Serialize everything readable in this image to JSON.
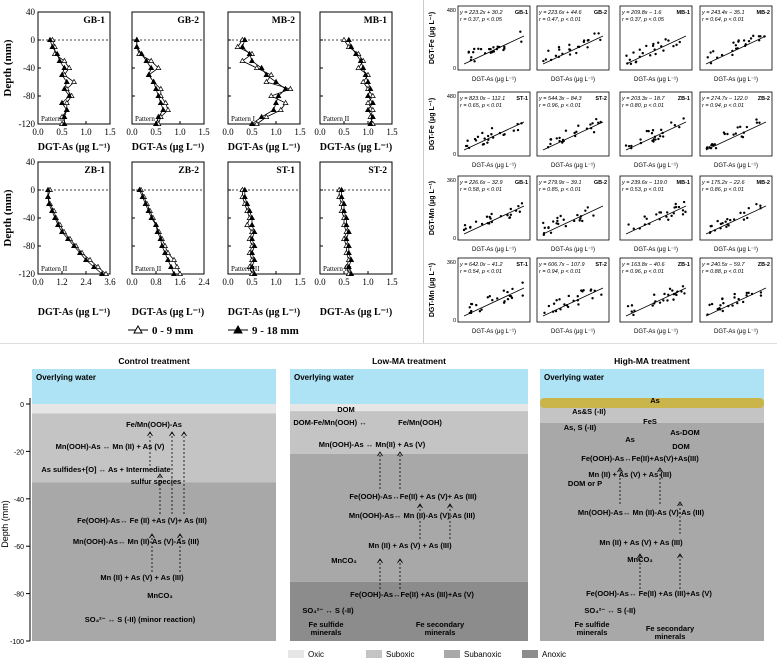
{
  "depth_profiles": {
    "ylabel": "Depth (mm)",
    "xlabel": "DGT-As (μg L⁻¹)",
    "legend": [
      {
        "label": "0 - 9 mm",
        "marker": "open-triangle"
      },
      {
        "label": "9 - 18 mm",
        "marker": "filled-triangle"
      }
    ],
    "yticks_top": [
      "40",
      "0",
      "-40",
      "-80",
      "-120"
    ],
    "yticks_bottom": [
      "40",
      "0",
      "-40",
      "-80",
      "-120"
    ],
    "panels": [
      {
        "site": "GB-1",
        "pattern": "Pattern I",
        "xticks": [
          "0.0",
          "0.5",
          "1.0",
          "1.5"
        ],
        "xmax": 1.5,
        "open": [
          [
            0.3,
            0
          ],
          [
            0.35,
            -10
          ],
          [
            0.35,
            -20
          ],
          [
            0.55,
            -30
          ],
          [
            0.65,
            -40
          ],
          [
            0.55,
            -50
          ],
          [
            0.75,
            -60
          ],
          [
            0.6,
            -70
          ],
          [
            0.7,
            -80
          ],
          [
            0.6,
            -90
          ],
          [
            0.6,
            -100
          ],
          [
            0.5,
            -110
          ],
          [
            0.5,
            -120
          ]
        ],
        "filled": [
          [
            0.25,
            0
          ],
          [
            0.3,
            -10
          ],
          [
            0.4,
            -20
          ],
          [
            0.45,
            -30
          ],
          [
            0.55,
            -40
          ],
          [
            0.5,
            -50
          ],
          [
            0.6,
            -60
          ],
          [
            0.55,
            -70
          ],
          [
            0.65,
            -80
          ],
          [
            0.5,
            -90
          ],
          [
            0.6,
            -100
          ],
          [
            0.55,
            -110
          ],
          [
            0.55,
            -120
          ]
        ]
      },
      {
        "site": "GB-2",
        "pattern": "Pattern I",
        "xticks": [
          "0.0",
          "0.5",
          "1.0",
          "1.5"
        ],
        "xmax": 1.5,
        "open": [
          [
            0.1,
            0
          ],
          [
            0.1,
            -10
          ],
          [
            0.15,
            -20
          ],
          [
            0.4,
            -30
          ],
          [
            0.55,
            -40
          ],
          [
            0.35,
            -50
          ],
          [
            0.45,
            -60
          ],
          [
            0.6,
            -70
          ],
          [
            0.6,
            -80
          ],
          [
            0.7,
            -90
          ],
          [
            0.75,
            -100
          ],
          [
            0.6,
            -110
          ],
          [
            0.55,
            -120
          ]
        ],
        "filled": [
          [
            0.1,
            0
          ],
          [
            0.1,
            -10
          ],
          [
            0.2,
            -20
          ],
          [
            0.3,
            -30
          ],
          [
            0.4,
            -40
          ],
          [
            0.35,
            -50
          ],
          [
            0.45,
            -60
          ],
          [
            0.5,
            -70
          ],
          [
            0.55,
            -80
          ],
          [
            0.6,
            -90
          ],
          [
            0.65,
            -100
          ],
          [
            0.55,
            -110
          ],
          [
            0.5,
            -120
          ]
        ]
      },
      {
        "site": "MB-2",
        "pattern": "Pattern I",
        "xticks": [
          "0.0",
          "0.5",
          "1.0",
          "1.5"
        ],
        "xmax": 1.5,
        "open": [
          [
            0.3,
            0
          ],
          [
            0.2,
            -10
          ],
          [
            0.5,
            -20
          ],
          [
            0.3,
            -30
          ],
          [
            0.6,
            -40
          ],
          [
            0.9,
            -50
          ],
          [
            0.8,
            -60
          ],
          [
            1.3,
            -70
          ],
          [
            0.9,
            -80
          ],
          [
            1.2,
            -90
          ],
          [
            1.1,
            -100
          ],
          [
            0.8,
            -110
          ],
          [
            0.6,
            -120
          ]
        ],
        "filled": [
          [
            0.35,
            0
          ],
          [
            0.3,
            -10
          ],
          [
            0.45,
            -20
          ],
          [
            0.5,
            -30
          ],
          [
            0.7,
            -40
          ],
          [
            0.8,
            -50
          ],
          [
            1.0,
            -60
          ],
          [
            1.2,
            -70
          ],
          [
            1.05,
            -80
          ],
          [
            1.0,
            -90
          ],
          [
            0.95,
            -100
          ],
          [
            0.7,
            -110
          ],
          [
            0.5,
            -120
          ]
        ]
      },
      {
        "site": "MB-1",
        "pattern": "Pattern II",
        "xticks": [
          "0.0",
          "0.5",
          "1.0",
          "1.5"
        ],
        "xmax": 1.5,
        "open": [
          [
            0.5,
            0
          ],
          [
            0.6,
            -10
          ],
          [
            0.8,
            -20
          ],
          [
            0.9,
            -30
          ],
          [
            0.8,
            -40
          ],
          [
            1.0,
            -50
          ],
          [
            0.9,
            -60
          ],
          [
            1.0,
            -70
          ],
          [
            1.1,
            -80
          ],
          [
            1.0,
            -90
          ],
          [
            1.1,
            -100
          ],
          [
            1.05,
            -110
          ],
          [
            1.1,
            -120
          ]
        ],
        "filled": [
          [
            0.6,
            0
          ],
          [
            0.65,
            -10
          ],
          [
            0.75,
            -20
          ],
          [
            0.85,
            -30
          ],
          [
            0.9,
            -40
          ],
          [
            0.95,
            -50
          ],
          [
            1.0,
            -60
          ],
          [
            1.05,
            -70
          ],
          [
            1.0,
            -80
          ],
          [
            1.1,
            -90
          ],
          [
            1.0,
            -100
          ],
          [
            1.1,
            -110
          ],
          [
            1.05,
            -120
          ]
        ]
      },
      {
        "site": "ZB-1",
        "pattern": "Pattern II",
        "xticks": [
          "0.0",
          "1.2",
          "2.4",
          "3.6"
        ],
        "xmax": 3.6,
        "open": [
          [
            0.6,
            0
          ],
          [
            0.5,
            -10
          ],
          [
            0.6,
            -20
          ],
          [
            0.8,
            -30
          ],
          [
            0.9,
            -40
          ],
          [
            1.1,
            -50
          ],
          [
            1.3,
            -60
          ],
          [
            1.6,
            -70
          ],
          [
            1.9,
            -80
          ],
          [
            2.2,
            -90
          ],
          [
            2.6,
            -100
          ],
          [
            3.0,
            -110
          ],
          [
            3.4,
            -120
          ]
        ],
        "filled": [
          [
            0.5,
            0
          ],
          [
            0.5,
            -10
          ],
          [
            0.55,
            -20
          ],
          [
            0.7,
            -30
          ],
          [
            0.85,
            -40
          ],
          [
            1.0,
            -50
          ],
          [
            1.2,
            -60
          ],
          [
            1.5,
            -70
          ],
          [
            1.8,
            -80
          ],
          [
            2.1,
            -90
          ],
          [
            2.4,
            -100
          ],
          [
            2.8,
            -110
          ],
          [
            3.2,
            -120
          ]
        ]
      },
      {
        "site": "ZB-2",
        "pattern": "Pattern II",
        "xticks": [
          "0.0",
          "0.8",
          "1.6",
          "2.4"
        ],
        "xmax": 2.4,
        "open": [
          [
            0.3,
            0
          ],
          [
            0.4,
            -10
          ],
          [
            0.5,
            -20
          ],
          [
            0.6,
            -30
          ],
          [
            0.7,
            -40
          ],
          [
            0.8,
            -50
          ],
          [
            0.9,
            -60
          ],
          [
            1.0,
            -70
          ],
          [
            1.1,
            -80
          ],
          [
            1.2,
            -90
          ],
          [
            1.4,
            -100
          ],
          [
            1.5,
            -110
          ],
          [
            1.6,
            -120
          ]
        ],
        "filled": [
          [
            0.25,
            0
          ],
          [
            0.35,
            -10
          ],
          [
            0.45,
            -20
          ],
          [
            0.55,
            -30
          ],
          [
            0.65,
            -40
          ],
          [
            0.8,
            -50
          ],
          [
            0.85,
            -60
          ],
          [
            0.95,
            -70
          ],
          [
            1.0,
            -80
          ],
          [
            1.1,
            -90
          ],
          [
            1.2,
            -100
          ],
          [
            1.3,
            -110
          ],
          [
            1.4,
            -120
          ]
        ]
      },
      {
        "site": "ST-1",
        "pattern": "Pattern III",
        "xticks": [
          "0.0",
          "0.5",
          "1.0",
          "1.5"
        ],
        "xmax": 1.5,
        "open": [
          [
            0.3,
            0
          ],
          [
            0.3,
            -10
          ],
          [
            0.35,
            -20
          ],
          [
            0.4,
            -30
          ],
          [
            0.45,
            -40
          ],
          [
            0.4,
            -50
          ],
          [
            0.5,
            -60
          ],
          [
            0.45,
            -70
          ],
          [
            0.5,
            -80
          ],
          [
            0.45,
            -90
          ],
          [
            0.5,
            -100
          ],
          [
            0.45,
            -110
          ],
          [
            0.5,
            -120
          ]
        ],
        "filled": [
          [
            0.35,
            0
          ],
          [
            0.35,
            -10
          ],
          [
            0.4,
            -20
          ],
          [
            0.45,
            -30
          ],
          [
            0.5,
            -40
          ],
          [
            0.5,
            -50
          ],
          [
            0.55,
            -60
          ],
          [
            0.5,
            -70
          ],
          [
            0.55,
            -80
          ],
          [
            0.5,
            -90
          ],
          [
            0.55,
            -100
          ],
          [
            0.5,
            -110
          ],
          [
            0.55,
            -120
          ]
        ]
      },
      {
        "site": "ST-2",
        "pattern": "Pattern III",
        "xticks": [
          "0.0",
          "0.5",
          "1.0",
          "1.5"
        ],
        "xmax": 1.5,
        "open": [
          [
            0.4,
            0
          ],
          [
            0.4,
            -10
          ],
          [
            0.45,
            -20
          ],
          [
            0.45,
            -30
          ],
          [
            0.5,
            -40
          ],
          [
            0.5,
            -50
          ],
          [
            0.55,
            -60
          ],
          [
            0.5,
            -70
          ],
          [
            0.55,
            -80
          ],
          [
            0.55,
            -90
          ],
          [
            0.6,
            -100
          ],
          [
            0.55,
            -110
          ],
          [
            0.6,
            -120
          ]
        ],
        "filled": [
          [
            0.45,
            0
          ],
          [
            0.45,
            -10
          ],
          [
            0.5,
            -20
          ],
          [
            0.5,
            -30
          ],
          [
            0.55,
            -40
          ],
          [
            0.55,
            -50
          ],
          [
            0.6,
            -60
          ],
          [
            0.55,
            -70
          ],
          [
            0.6,
            -80
          ],
          [
            0.6,
            -90
          ],
          [
            0.65,
            -100
          ],
          [
            0.6,
            -110
          ],
          [
            0.65,
            -120
          ]
        ]
      }
    ]
  },
  "scatter": {
    "row_labels": [
      "DGT-Fe (μg L⁻¹)",
      "DGT-Fe (μg L⁻¹)",
      "DGT-Mn (μg L⁻¹)",
      "DGT-Mn (μg L⁻¹)"
    ],
    "xlabel": "DGT-As (μg L⁻¹)",
    "panels": [
      {
        "site": "GB-1",
        "eq": "y = 223.2x + 30.2",
        "r": "r = 0.37, p < 0.05",
        "ymax": 480
      },
      {
        "site": "GB-2",
        "eq": "y = 223.6x + 44.6",
        "r": "r = 0.47, p < 0.01",
        "ymax": 480
      },
      {
        "site": "MB-1",
        "eq": "y = 209.8x − 1.6",
        "r": "r = 0.37, p < 0.05",
        "ymax": 480
      },
      {
        "site": "MB-2",
        "eq": "y = 243.4x − 35.1",
        "r": "r = 0.64, p < 0.01",
        "ymax": 480
      },
      {
        "site": "ST-1",
        "eq": "y = 823.0x − 112.1",
        "r": "r = 0.65, p < 0.01",
        "ymax": 480
      },
      {
        "site": "ST-2",
        "eq": "y = 544.3x − 84.3",
        "r": "r = 0.96, p < 0.01",
        "ymax": 480
      },
      {
        "site": "ZB-1",
        "eq": "y = 203.3x − 18.7",
        "r": "r = 0.80, p < 0.01",
        "ymax": 480
      },
      {
        "site": "ZB-2",
        "eq": "y = 274.7x − 122.0",
        "r": "r = 0.94, p < 0.01",
        "ymax": 480
      },
      {
        "site": "GB-1",
        "eq": "y = 226.6x − 32.9",
        "r": "r = 0.58, p < 0.01",
        "ymax": 360
      },
      {
        "site": "GB-2",
        "eq": "y = 279.9x − 39.1",
        "r": "r = 0.85, p < 0.01",
        "ymax": 360
      },
      {
        "site": "MB-1",
        "eq": "y = 239.6x − 119.0",
        "r": "r = 0.53, p < 0.01",
        "ymax": 360
      },
      {
        "site": "MB-2",
        "eq": "y = 175.2x − 22.6",
        "r": "r = 0.86, p < 0.01",
        "ymax": 360
      },
      {
        "site": "ST-1",
        "eq": "y = 642.0x − 41.2",
        "r": "r = 0.54, p < 0.01",
        "ymax": 360
      },
      {
        "site": "ST-2",
        "eq": "y = 606.7x − 107.9",
        "r": "r = 0.94, p < 0.01",
        "ymax": 360
      },
      {
        "site": "ZB-1",
        "eq": "y = 163.8x − 40.6",
        "r": "r = 0.96, p < 0.01",
        "ymax": 360
      },
      {
        "site": "ZB-2",
        "eq": "y = 240.5x − 59.7",
        "r": "r = 0.88, p < 0.01",
        "ymax": 360
      }
    ]
  },
  "schematic": {
    "depth_axis_label": "Depth (mm)",
    "depth_ticks": [
      "0",
      "-20",
      "-40",
      "-60",
      "-80",
      "-100"
    ],
    "overlying_water": "Overlying water",
    "legend": [
      {
        "label": "Oxic",
        "color": "#e6e6e6"
      },
      {
        "label": "Suboxic",
        "color": "#c4c4c4"
      },
      {
        "label": "Subanoxic",
        "color": "#a8a8a8"
      },
      {
        "label": "Anoxic",
        "color": "#8c8c8c"
      }
    ],
    "control": {
      "title": "Control treatment",
      "lines": [
        "Fe/Mn(OOH)-As",
        "Mn(OOH)-As ↔ Mn (II) + As (V)",
        "As sulfides+[O] ↔ As + Intermediate",
        "sulfur species",
        "Fe(OOH)-As↔ Fe (II) +As (V)+ As (III)",
        "Mn(OOH)-As↔ Mn (II)-As (V)-As (III)",
        "Mn (II) + As (V) + As (III)",
        "MnCO₃",
        "SO₄²⁻ ↔ S (-II) (minor reaction)"
      ]
    },
    "low_ma": {
      "title": "Low-MA treatment",
      "lines": [
        "DOM",
        "DOM-Fe/Mn(OOH) ↔",
        "Fe/Mn(OOH)",
        "Mn(OOH)-As ↔ Mn(II) + As (V)",
        "Fe(OOH)-As↔Fe(II) + As (V)+ As (III)",
        "Mn(OOH)-As↔ Mn (II)-As (V)-As (III)",
        "Mn (II) + As (V) + As (III)",
        "MnCO₃",
        "Fe(OOH)-As↔Fe(II) +As (III)+As (V)",
        "SO₄²⁻ ↔ S (-II)",
        "Fe sulfide",
        "minerals",
        "Fe secondary",
        "minerals"
      ]
    },
    "high_ma": {
      "title": "High-MA treatment",
      "lines": [
        "As",
        "As&S (-II)",
        "As, S (-II)",
        "FeS",
        "As",
        "As-DOM",
        "DOM",
        "Fe(OOH)-As↔Fe(II)+As(V)+As(III)",
        "DOM or P",
        "Mn (II) + As (V) + As (III)",
        "Mn(OOH)-As↔ Mn (II)-As (V)-As (III)",
        "Mn (II) + As (V) + As (III)",
        "MnCO₃",
        "Fe(OOH)-As↔ Fe(II) +As (III)+As (V)",
        "SO₄²⁻ ↔ S (-II)",
        "Fe sulfide",
        "minerals",
        "Fe secondary",
        "minerals"
      ]
    }
  }
}
